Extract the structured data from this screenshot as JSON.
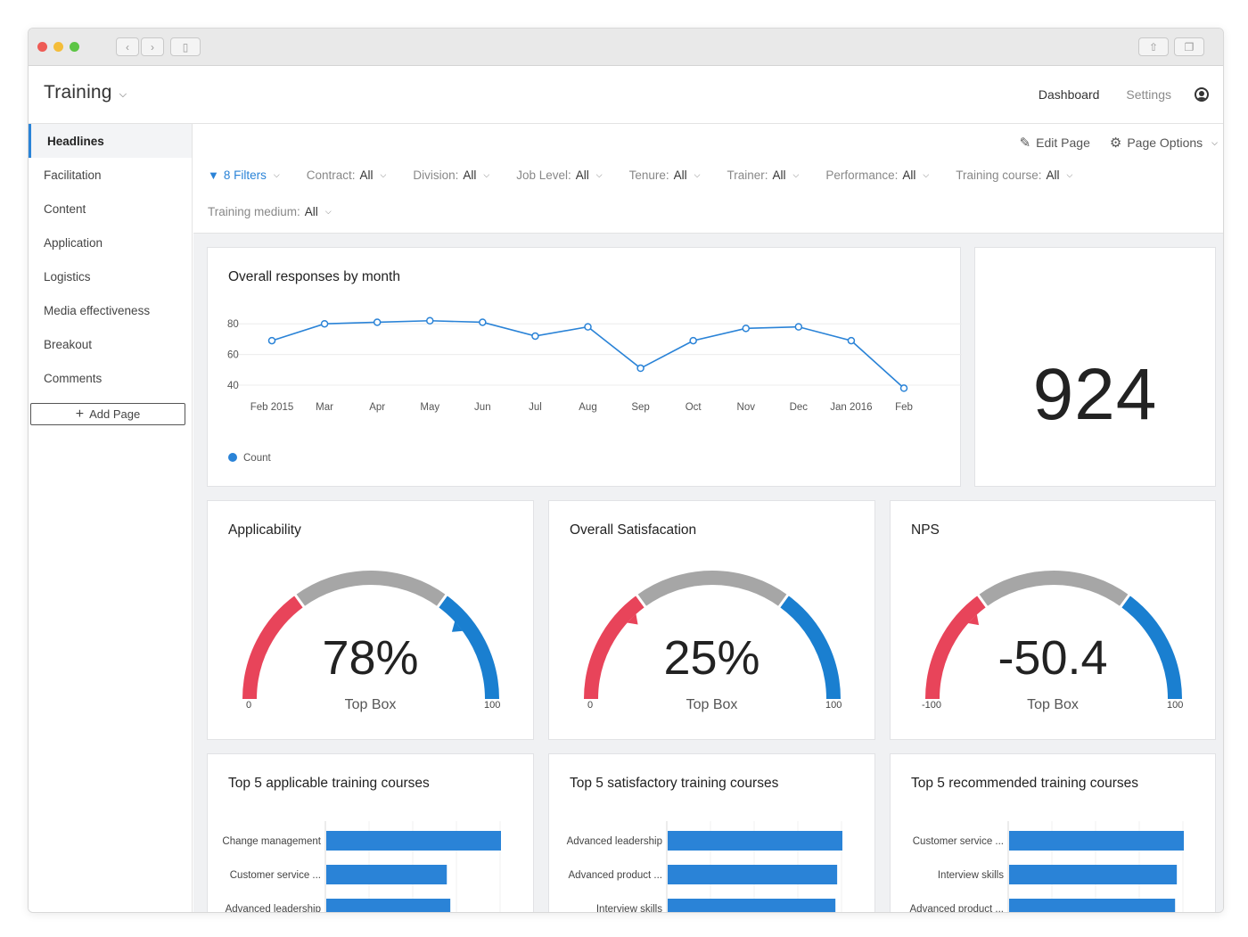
{
  "window": {
    "back_icon": "chevron-left-icon",
    "forward_icon": "chevron-right-icon",
    "sidebar_icon": "sidebar-icon",
    "share_icon": "share-icon",
    "tabs_icon": "tabs-icon"
  },
  "header": {
    "title": "Training",
    "nav": {
      "dashboard": "Dashboard",
      "settings": "Settings"
    }
  },
  "sidebar": {
    "items": [
      {
        "label": "Headlines"
      },
      {
        "label": "Facilitation"
      },
      {
        "label": "Content"
      },
      {
        "label": "Application"
      },
      {
        "label": "Logistics"
      },
      {
        "label": "Media effectiveness"
      },
      {
        "label": "Breakout"
      },
      {
        "label": "Comments"
      }
    ],
    "add_page": "Add Page"
  },
  "toolbar": {
    "edit_page": "Edit Page",
    "page_options": "Page Options"
  },
  "filters": {
    "summary": "8 Filters",
    "items": [
      {
        "label": "Contract:",
        "value": "All"
      },
      {
        "label": "Division:",
        "value": "All"
      },
      {
        "label": "Job Level:",
        "value": "All"
      },
      {
        "label": "Tenure:",
        "value": "All"
      },
      {
        "label": "Trainer:",
        "value": "All"
      },
      {
        "label": "Performance:",
        "value": "All"
      },
      {
        "label": "Training course:",
        "value": "All"
      },
      {
        "label": "Training medium:",
        "value": "All"
      }
    ]
  },
  "cards": {
    "responses": {
      "title": "Overall responses by month",
      "legend": "Count"
    },
    "total": {
      "value": "924"
    },
    "applicability": {
      "title": "Applicability",
      "value": "78%",
      "sub": "Top Box",
      "min": "0",
      "max": "100",
      "t1": "30",
      "t2": "70"
    },
    "satisfaction": {
      "title": "Overall Satisfacation",
      "value": "25%",
      "sub": "Top Box",
      "min": "0",
      "max": "100",
      "t1": "30",
      "t2": "70"
    },
    "nps": {
      "title": "NPS",
      "value": "-50.4",
      "sub": "Top Box",
      "min": "-100",
      "max": "100",
      "t1": "-40",
      "t2": "40"
    },
    "top_applicable": {
      "title": "Top 5 applicable training courses"
    },
    "top_satisfactory": {
      "title": "Top 5 satisfactory training courses"
    },
    "top_recommended": {
      "title": "Top 5 recommended training courses"
    }
  },
  "colors": {
    "accent": "#2a83d7",
    "red": "#e8445a",
    "gray": "#a6a6a6",
    "blue_gauge": "#1a7fd0"
  },
  "chart_data": [
    {
      "type": "line",
      "title": "Overall responses by month",
      "categories": [
        "Feb 2015",
        "Mar",
        "Apr",
        "May",
        "Jun",
        "Jul",
        "Aug",
        "Sep",
        "Oct",
        "Nov",
        "Dec",
        "Jan 2016",
        "Feb"
      ],
      "series": [
        {
          "name": "Count",
          "values": [
            69,
            80,
            81,
            82,
            81,
            72,
            78,
            51,
            69,
            77,
            78,
            69,
            38
          ]
        }
      ],
      "yticks": [
        40,
        60,
        80
      ],
      "ylim": [
        33,
        90
      ],
      "grid": true,
      "legend": "bottom-left"
    },
    {
      "type": "gauge",
      "title": "Applicability",
      "value": 78,
      "range": [
        0,
        100
      ],
      "bands": [
        {
          "from": 0,
          "to": 30,
          "color": "#e8445a"
        },
        {
          "from": 30,
          "to": 70,
          "color": "#a6a6a6"
        },
        {
          "from": 70,
          "to": 100,
          "color": "#1a7fd0"
        }
      ]
    },
    {
      "type": "gauge",
      "title": "Overall Satisfacation",
      "value": 25,
      "range": [
        0,
        100
      ],
      "bands": [
        {
          "from": 0,
          "to": 30,
          "color": "#e8445a"
        },
        {
          "from": 30,
          "to": 70,
          "color": "#a6a6a6"
        },
        {
          "from": 70,
          "to": 100,
          "color": "#1a7fd0"
        }
      ]
    },
    {
      "type": "gauge",
      "title": "NPS",
      "value": -50.4,
      "range": [
        -100,
        100
      ],
      "bands": [
        {
          "from": -100,
          "to": -40,
          "color": "#e8445a"
        },
        {
          "from": -40,
          "to": 40,
          "color": "#a6a6a6"
        },
        {
          "from": 40,
          "to": 100,
          "color": "#1a7fd0"
        }
      ]
    },
    {
      "type": "bar",
      "orientation": "horizontal",
      "title": "Top 5 applicable training courses",
      "categories": [
        "Change management",
        "Customer service ...",
        "Advanced leadership"
      ],
      "values": [
        100,
        69,
        71
      ],
      "xlim": [
        0,
        100
      ]
    },
    {
      "type": "bar",
      "orientation": "horizontal",
      "title": "Top 5 satisfactory training courses",
      "categories": [
        "Advanced leadership",
        "Advanced product ...",
        "Interview skills"
      ],
      "values": [
        100,
        97,
        96
      ],
      "xlim": [
        0,
        100
      ]
    },
    {
      "type": "bar",
      "orientation": "horizontal",
      "title": "Top 5 recommended training courses",
      "categories": [
        "Customer service ...",
        "Interview skills",
        "Advanced product ..."
      ],
      "values": [
        100,
        96,
        95
      ],
      "xlim": [
        0,
        100
      ]
    }
  ]
}
